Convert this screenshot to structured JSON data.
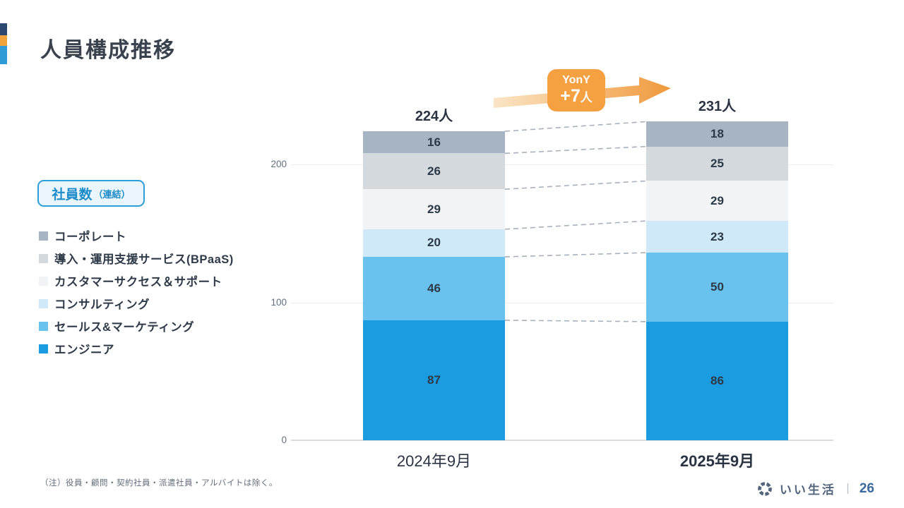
{
  "slide": {
    "title": "人員構成推移",
    "unit_box": {
      "main": "社員数",
      "sub": "（連結）"
    },
    "note": "（注）役員・顧問・契約社員・派遣社員・アルバイトは除く。",
    "footer": {
      "company": "いい生活",
      "separator": "｜",
      "page": "26"
    }
  },
  "yony": {
    "label": "YonY",
    "delta": "+7",
    "delta_unit": "人"
  },
  "chart_data": {
    "type": "bar",
    "stacked": true,
    "title": "社員数（連結）推移",
    "categories": [
      "2024年9月",
      "2025年9月"
    ],
    "bold_category_index": 1,
    "series": [
      {
        "name": "コーポレート",
        "color": "#a7b4c4",
        "values": [
          16,
          18
        ]
      },
      {
        "name": "導入・運用支援サービス(BPaaS)",
        "color": "#d4d9de",
        "values": [
          26,
          25
        ]
      },
      {
        "name": "カスタマーサクセス＆サポート",
        "color": "#f1f3f5",
        "values": [
          29,
          29
        ]
      },
      {
        "name": "コンサルティング",
        "color": "#cfe9f9",
        "values": [
          20,
          23
        ]
      },
      {
        "name": "セールス&マーケティング",
        "color": "#68c2ed",
        "values": [
          46,
          50
        ]
      },
      {
        "name": "エンジニア",
        "color": "#1b9ce1",
        "values": [
          87,
          86
        ]
      }
    ],
    "totals": [
      224,
      231
    ],
    "totals_labels": [
      "224人",
      "231人"
    ],
    "yticks": [
      0,
      100,
      200
    ],
    "ylim": [
      0,
      268
    ],
    "grid": "faint horizontal at 100 and 200",
    "legend_position": "left",
    "value_labels": true,
    "connectors": "dashed lines between segment boundaries of the two bars"
  },
  "colors": {
    "accent_navy": "#2c4770",
    "accent_orange": "#f0a33c",
    "accent_blue": "#2e9bd6",
    "badge_orange": "#f5a142",
    "arrow_gradient_start": "#fae5c6",
    "arrow_gradient_end": "#f0993c",
    "dashed_connector": "#a7b1bc",
    "unit_box_border": "#2e9ed9",
    "unit_box_text": "#1e8cc8",
    "logo_slate": "#52657c",
    "page_number_blue": "#3a699c"
  }
}
